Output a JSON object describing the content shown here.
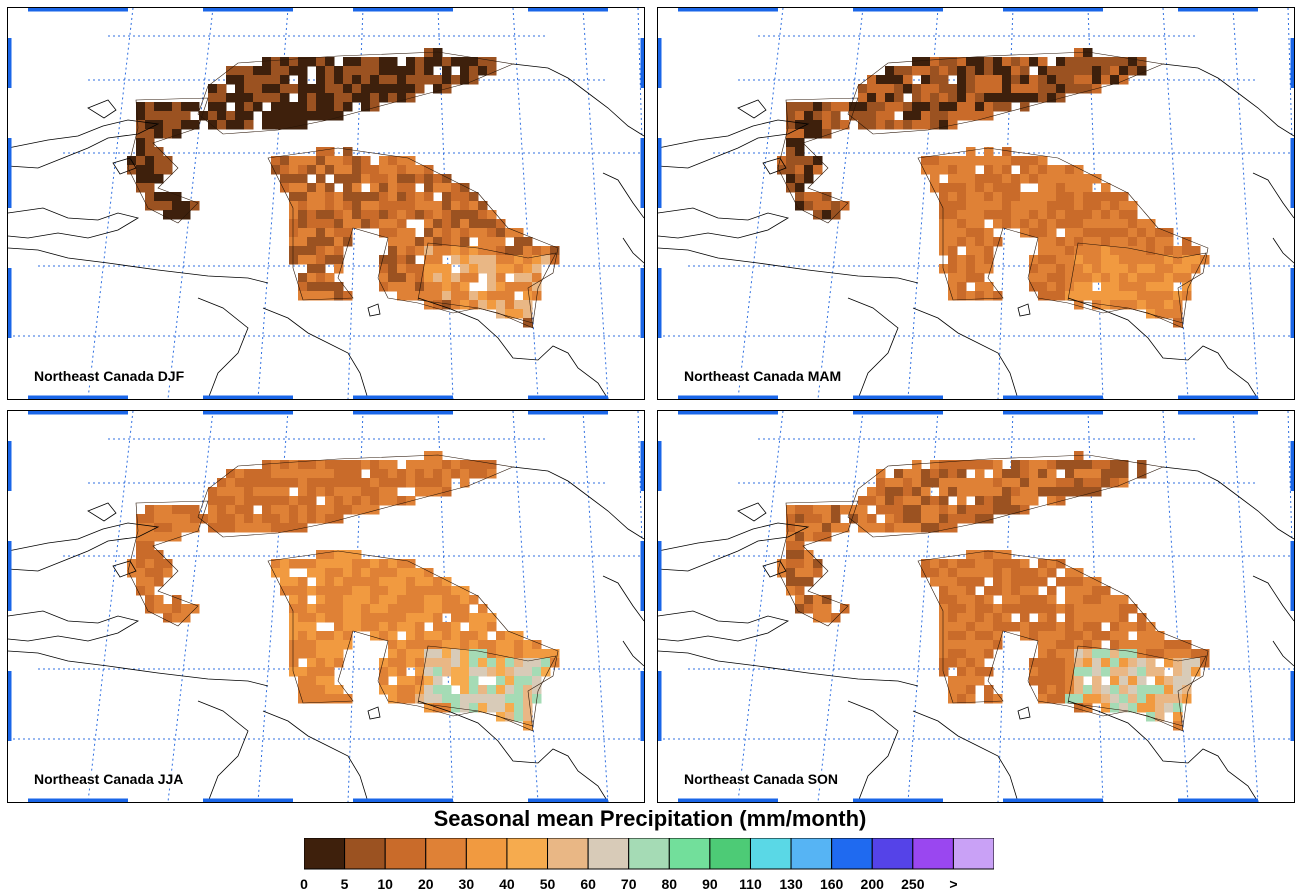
{
  "panels": [
    {
      "label": "Northeast Canada DJF",
      "season": "DJF"
    },
    {
      "label": "Northeast Canada MAM",
      "season": "MAM"
    },
    {
      "label": "Northeast Canada JJA",
      "season": "JJA"
    },
    {
      "label": "Northeast Canada SON",
      "season": "SON"
    }
  ],
  "colorbar": {
    "title": "Seasonal mean Precipitation (mm/month)",
    "ticks": [
      "0",
      "5",
      "10",
      "20",
      "30",
      "40",
      "50",
      "60",
      "70",
      "80",
      "90",
      "110",
      "130",
      "160",
      "200",
      "250",
      ">"
    ],
    "colors": [
      "#3e200c",
      "#9b5221",
      "#c96b2a",
      "#df8136",
      "#f19a40",
      "#f6ab4e",
      "#e9b785",
      "#d8cbb8",
      "#a5dbb5",
      "#72df9b",
      "#4dcb76",
      "#5ad8e6",
      "#56b4f4",
      "#1f6af0",
      "#5543e8",
      "#9a47f0",
      "#c9a1f6"
    ]
  },
  "map_style": {
    "coast_color": "#000000",
    "grid_color": "#2f6fe0",
    "frame_tick_color": "#1a66e8"
  },
  "season_palettes": {
    "DJF": {
      "north": [
        "#3e200c",
        "#9b5221"
      ],
      "south": [
        "#9b5221",
        "#c96b2a",
        "#df8136"
      ],
      "east": [
        "#df8136",
        "#f19a40",
        "#e9b785"
      ]
    },
    "MAM": {
      "north": [
        "#3e200c",
        "#9b5221",
        "#c96b2a"
      ],
      "south": [
        "#c96b2a",
        "#df8136"
      ],
      "east": [
        "#df8136",
        "#f19a40"
      ]
    },
    "JJA": {
      "north": [
        "#c96b2a",
        "#df8136"
      ],
      "south": [
        "#df8136",
        "#f19a40"
      ],
      "east": [
        "#f6ab4e",
        "#e9b785",
        "#d8cbb8",
        "#a5dbb5"
      ]
    },
    "SON": {
      "north": [
        "#9b5221",
        "#c96b2a",
        "#df8136"
      ],
      "south": [
        "#c96b2a",
        "#df8136"
      ],
      "east": [
        "#f19a40",
        "#e9b785",
        "#d8cbb8",
        "#a5dbb5"
      ]
    }
  }
}
